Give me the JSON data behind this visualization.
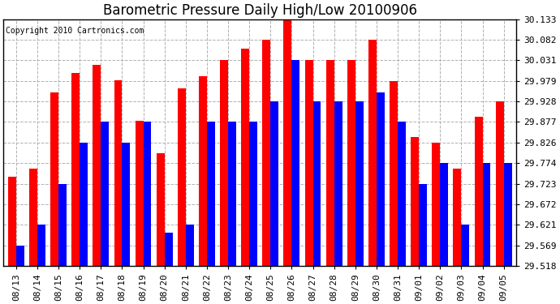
{
  "title": "Barometric Pressure Daily High/Low 20100906",
  "copyright": "Copyright 2010 Cartronics.com",
  "dates": [
    "08/13",
    "08/14",
    "08/15",
    "08/16",
    "08/17",
    "08/18",
    "08/19",
    "08/20",
    "08/21",
    "08/22",
    "08/23",
    "08/24",
    "08/25",
    "08/26",
    "08/27",
    "08/28",
    "08/29",
    "08/30",
    "08/31",
    "09/01",
    "09/02",
    "09/03",
    "09/04",
    "09/05"
  ],
  "high": [
    29.74,
    29.76,
    29.95,
    30.0,
    30.02,
    29.98,
    29.88,
    29.8,
    29.96,
    29.99,
    30.031,
    30.06,
    30.082,
    30.133,
    30.031,
    30.031,
    30.031,
    30.082,
    29.979,
    29.84,
    29.826,
    29.76,
    29.89,
    29.928
  ],
  "low": [
    29.569,
    29.621,
    29.723,
    29.826,
    29.877,
    29.826,
    29.877,
    29.6,
    29.621,
    29.877,
    29.877,
    29.877,
    29.928,
    30.031,
    29.928,
    29.928,
    29.928,
    29.951,
    29.877,
    29.723,
    29.774,
    29.621,
    29.774,
    29.774
  ],
  "ymin": 29.518,
  "ylim": [
    29.518,
    30.133
  ],
  "yticks": [
    29.518,
    29.569,
    29.621,
    29.672,
    29.723,
    29.774,
    29.826,
    29.877,
    29.928,
    29.979,
    30.031,
    30.082,
    30.133
  ],
  "bar_color_high": "#ff0000",
  "bar_color_low": "#0000ff",
  "background_color": "#ffffff",
  "grid_color": "#b0b0b0",
  "title_fontsize": 12,
  "tick_fontsize": 8,
  "copyright_fontsize": 7
}
